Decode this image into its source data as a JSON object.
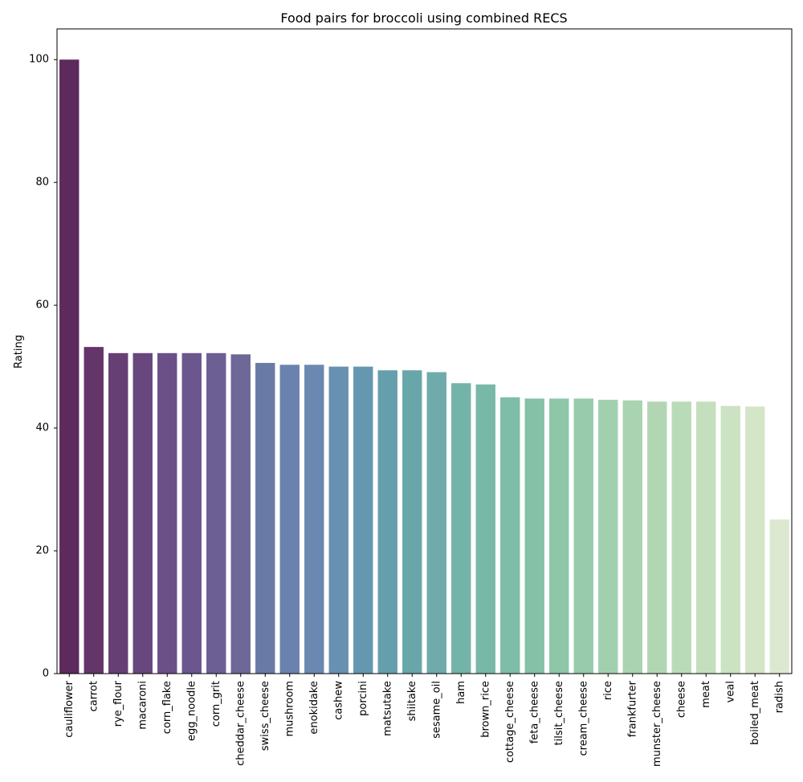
{
  "chart_data": {
    "type": "bar",
    "title": "Food pairs for broccoli using combined RECS",
    "xlabel": "",
    "ylabel": "Rating",
    "ylim": [
      0,
      105
    ],
    "yticks": [
      0,
      20,
      40,
      60,
      80,
      100
    ],
    "grid": false,
    "categories": [
      "cauliflower",
      "carrot",
      "rye_flour",
      "macaroni",
      "corn_flake",
      "egg_noodle",
      "corn_grit",
      "cheddar_cheese",
      "swiss_cheese",
      "mushroom",
      "enokidake",
      "cashew",
      "porcini",
      "matsutake",
      "shiitake",
      "sesame_oil",
      "ham",
      "brown_rice",
      "cottage_cheese",
      "feta_cheese",
      "tilsit_cheese",
      "cream_cheese",
      "rice",
      "frankfurter",
      "munster_cheese",
      "cheese",
      "meat",
      "veal",
      "boiled_meat",
      "radish"
    ],
    "values": [
      100,
      53.2,
      52.2,
      52.2,
      52.2,
      52.2,
      52.2,
      52.0,
      50.6,
      50.3,
      50.3,
      50.0,
      50.0,
      49.4,
      49.4,
      49.1,
      47.3,
      47.1,
      45.0,
      44.8,
      44.8,
      44.8,
      44.6,
      44.5,
      44.3,
      44.3,
      44.3,
      43.6,
      43.5,
      25.1
    ],
    "colors": [
      "#5c2a5c",
      "#633569",
      "#663f74",
      "#67477e",
      "#6a5087",
      "#6b578d",
      "#6b5f93",
      "#6d6897",
      "#6a7aa6",
      "#6a82ad",
      "#6a88b0",
      "#6890b1",
      "#6598b0",
      "#669fac",
      "#69a6aa",
      "#6eabaa",
      "#74b3a7",
      "#78b8a7",
      "#7ebda7",
      "#85c1a7",
      "#8dc6a9",
      "#97cbab",
      "#a1d0ae",
      "#a9d3b1",
      "#b2d6b4",
      "#badbb8",
      "#c4dfbd",
      "#cbe2c3",
      "#d4e5c8",
      "#dde8d0"
    ]
  }
}
